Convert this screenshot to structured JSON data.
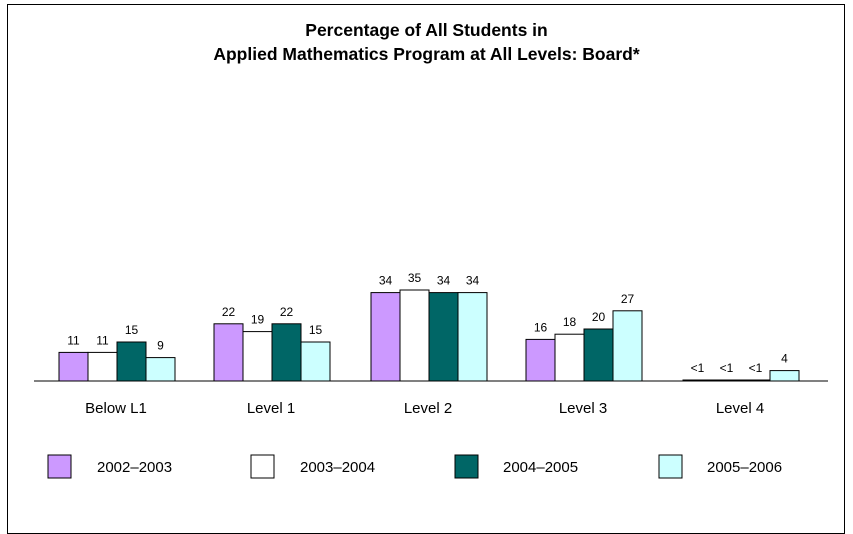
{
  "chart_data": {
    "type": "bar",
    "title_lines": [
      "Percentage of All Students in",
      "Applied Mathematics Program at All Levels: Board*"
    ],
    "categories": [
      "Below L1",
      "Level 1",
      "Level 2",
      "Level 3",
      "Level 4"
    ],
    "series": [
      {
        "name": "2002–2003",
        "color": "#cc99ff",
        "values": [
          11,
          22,
          34,
          16,
          0.3
        ],
        "labels": [
          "11",
          "22",
          "34",
          "16",
          "<1"
        ]
      },
      {
        "name": "2003–2004",
        "color": "#ffffff",
        "values": [
          11,
          19,
          35,
          18,
          0.3
        ],
        "labels": [
          "11",
          "19",
          "35",
          "18",
          "<1"
        ]
      },
      {
        "name": "2004–2005",
        "color": "#006666",
        "values": [
          15,
          22,
          34,
          20,
          0.3
        ],
        "labels": [
          "15",
          "22",
          "34",
          "20",
          "<1"
        ]
      },
      {
        "name": "2005–2006",
        "color": "#ccffff",
        "values": [
          9,
          15,
          34,
          27,
          4
        ],
        "labels": [
          "9",
          "15",
          "34",
          "27",
          "4"
        ]
      }
    ],
    "ylim": [
      0,
      35
    ],
    "grid": false,
    "legend_position": "bottom"
  }
}
